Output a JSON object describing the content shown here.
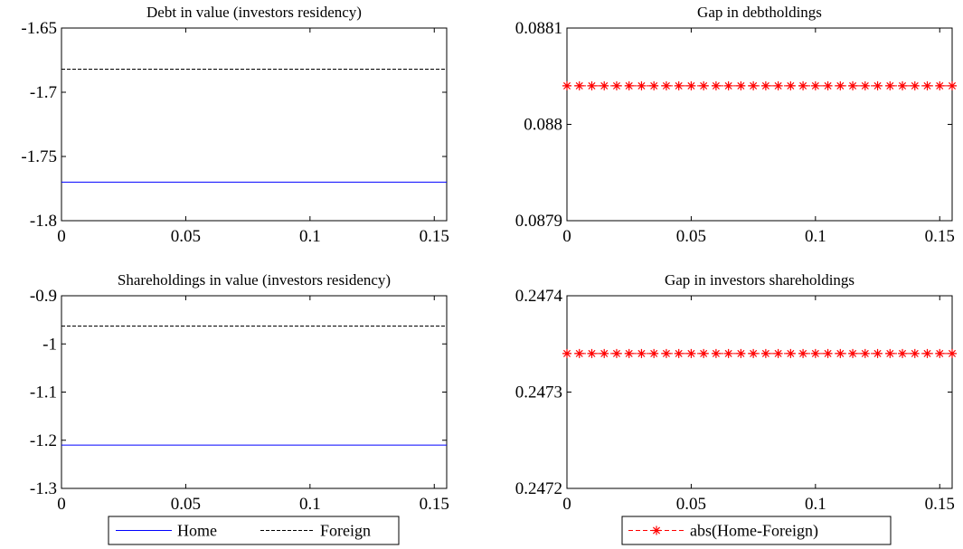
{
  "chart_data": [
    {
      "type": "line",
      "title": "Debt in value (investors residency)",
      "xlim": [
        0,
        0.155
      ],
      "ylim": [
        -1.8,
        -1.65
      ],
      "x_ticks": [
        "0",
        "0.05",
        "0.1",
        "0.15"
      ],
      "x_tick_values": [
        0,
        0.05,
        0.1,
        0.15
      ],
      "y_ticks": [
        "-1.65",
        "-1.7",
        "-1.75",
        "-1.8"
      ],
      "y_tick_values": [
        -1.65,
        -1.7,
        -1.75,
        -1.8
      ],
      "series": [
        {
          "name": "Home",
          "x": [
            0,
            0.155
          ],
          "y": [
            -1.77,
            -1.77
          ],
          "color": "#0000ff",
          "style": "solid"
        },
        {
          "name": "Foreign",
          "x": [
            0,
            0.155
          ],
          "y": [
            -1.682,
            -1.682
          ],
          "color": "#000000",
          "style": "dashed"
        }
      ]
    },
    {
      "type": "line",
      "title": "Gap in debtholdings",
      "xlim": [
        0,
        0.155
      ],
      "ylim": [
        0.0879,
        0.0881
      ],
      "x_ticks": [
        "0",
        "0.05",
        "0.1",
        "0.15"
      ],
      "x_tick_values": [
        0,
        0.05,
        0.1,
        0.15
      ],
      "y_ticks": [
        "0.0881",
        "0.088",
        "0.0879"
      ],
      "y_tick_values": [
        0.0881,
        0.088,
        0.0879
      ],
      "series": [
        {
          "name": "abs(Home-Foreign)",
          "y": 0.08804,
          "x_start": 0,
          "x_step": 0.005,
          "count": 32,
          "color": "#ff0000",
          "style": "dashed",
          "marker": "star"
        }
      ]
    },
    {
      "type": "line",
      "title": "Shareholdings in value (investors residency)",
      "xlim": [
        0,
        0.155
      ],
      "ylim": [
        -1.3,
        -0.9
      ],
      "x_ticks": [
        "0",
        "0.05",
        "0.1",
        "0.15"
      ],
      "x_tick_values": [
        0,
        0.05,
        0.1,
        0.15
      ],
      "y_ticks": [
        "-0.9",
        "-1",
        "-1.1",
        "-1.2",
        "-1.3"
      ],
      "y_tick_values": [
        -0.9,
        -1,
        -1.1,
        -1.2,
        -1.3
      ],
      "series": [
        {
          "name": "Home",
          "x": [
            0,
            0.155
          ],
          "y": [
            -1.21,
            -1.21
          ],
          "color": "#0000ff",
          "style": "solid"
        },
        {
          "name": "Foreign",
          "x": [
            0,
            0.155
          ],
          "y": [
            -0.963,
            -0.963
          ],
          "color": "#000000",
          "style": "dashed"
        }
      ]
    },
    {
      "type": "line",
      "title": "Gap in investors shareholdings",
      "xlim": [
        0,
        0.155
      ],
      "ylim": [
        0.2472,
        0.2474
      ],
      "x_ticks": [
        "0",
        "0.05",
        "0.1",
        "0.15"
      ],
      "x_tick_values": [
        0,
        0.05,
        0.1,
        0.15
      ],
      "y_ticks": [
        "0.2474",
        "0.2473",
        "0.2472"
      ],
      "y_tick_values": [
        0.2474,
        0.2473,
        0.2472
      ],
      "series": [
        {
          "name": "abs(Home-Foreign)",
          "y": 0.24734,
          "x_start": 0,
          "x_step": 0.005,
          "count": 32,
          "color": "#ff0000",
          "style": "dashed",
          "marker": "star"
        }
      ]
    }
  ],
  "legends": [
    {
      "position": "bottom-left",
      "entries": [
        "Home",
        "Foreign"
      ]
    },
    {
      "position": "bottom-right",
      "entries": [
        "abs(Home-Foreign)"
      ]
    }
  ]
}
